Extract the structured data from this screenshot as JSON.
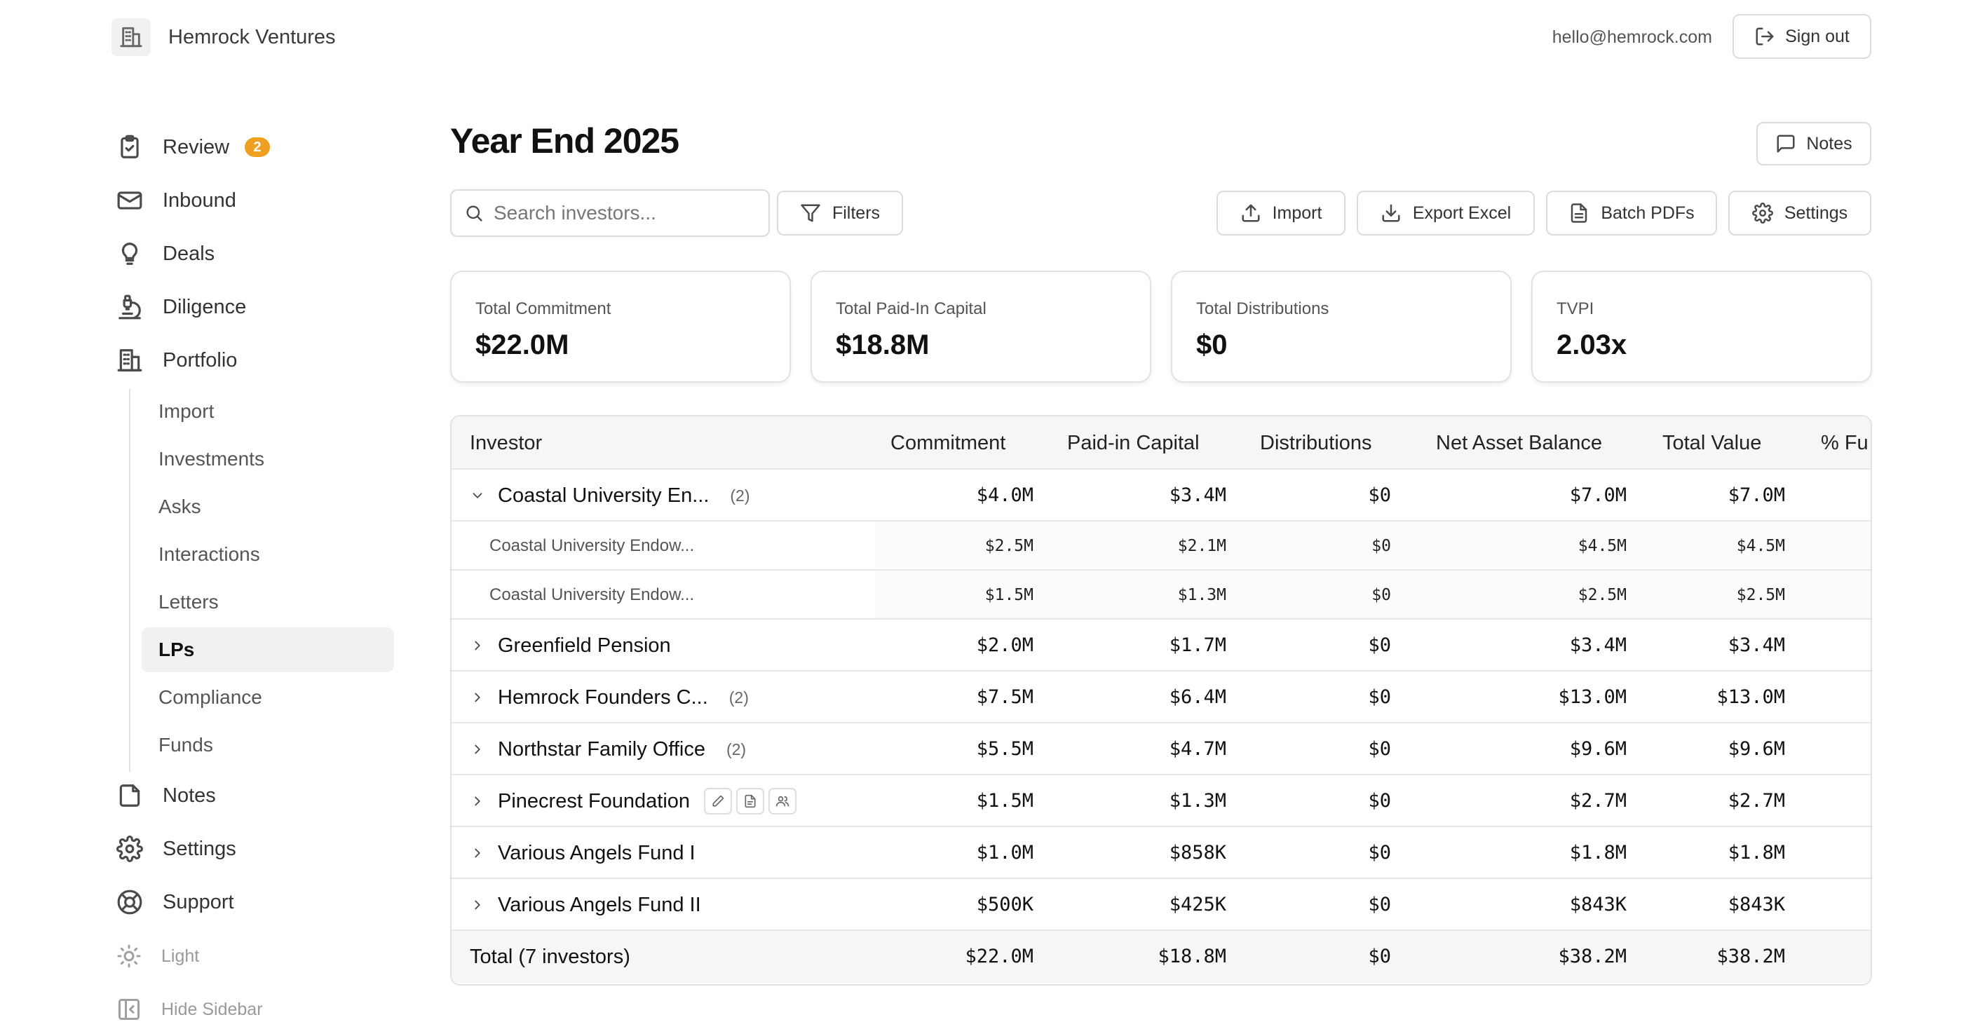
{
  "header": {
    "org_name": "Hemrock Ventures",
    "user_email": "hello@hemrock.com",
    "signout_label": "Sign out"
  },
  "sidebar": {
    "items": [
      {
        "label": "Review",
        "icon": "clipboard-check-icon",
        "badge": "2"
      },
      {
        "label": "Inbound",
        "icon": "mail-icon"
      },
      {
        "label": "Deals",
        "icon": "lightbulb-icon"
      },
      {
        "label": "Diligence",
        "icon": "microscope-icon"
      },
      {
        "label": "Portfolio",
        "icon": "building-icon"
      }
    ],
    "portfolio_sub": [
      "Import",
      "Investments",
      "Asks",
      "Interactions",
      "Letters",
      "LPs",
      "Compliance",
      "Funds"
    ],
    "active_sub": "LPs",
    "items_after": [
      {
        "label": "Notes",
        "icon": "note-icon"
      },
      {
        "label": "Settings",
        "icon": "gear-icon"
      },
      {
        "label": "Support",
        "icon": "lifebuoy-icon"
      }
    ],
    "theme_label": "Light",
    "hide_label": "Hide Sidebar"
  },
  "main": {
    "title": "Year End 2025",
    "notes_label": "Notes",
    "search_placeholder": "Search investors...",
    "filters_label": "Filters",
    "import_label": "Import",
    "export_label": "Export Excel",
    "batch_label": "Batch PDFs",
    "settings_label": "Settings"
  },
  "stats": [
    {
      "label": "Total Commitment",
      "value": "$22.0M"
    },
    {
      "label": "Total Paid-In Capital",
      "value": "$18.8M"
    },
    {
      "label": "Total Distributions",
      "value": "$0"
    },
    {
      "label": "TVPI",
      "value": "2.03x"
    }
  ],
  "table": {
    "columns": [
      "Investor",
      "Commitment",
      "Paid-in Capital",
      "Distributions",
      "Net Asset Balance",
      "Total Value",
      "% Fu"
    ],
    "rows": [
      {
        "name": "Coastal University En...",
        "count": "(2)",
        "expanded": true,
        "values": [
          "$4.0M",
          "$3.4M",
          "$0",
          "$7.0M",
          "$7.0M"
        ]
      },
      {
        "name": "Coastal University Endow...",
        "sub": true,
        "values": [
          "$2.5M",
          "$2.1M",
          "$0",
          "$4.5M",
          "$4.5M"
        ]
      },
      {
        "name": "Coastal University Endow...",
        "sub": true,
        "values": [
          "$1.5M",
          "$1.3M",
          "$0",
          "$2.5M",
          "$2.5M"
        ]
      },
      {
        "name": "Greenfield Pension",
        "values": [
          "$2.0M",
          "$1.7M",
          "$0",
          "$3.4M",
          "$3.4M"
        ]
      },
      {
        "name": "Hemrock Founders C...",
        "count": "(2)",
        "values": [
          "$7.5M",
          "$6.4M",
          "$0",
          "$13.0M",
          "$13.0M"
        ]
      },
      {
        "name": "Northstar Family Office",
        "count": "(2)",
        "values": [
          "$5.5M",
          "$4.7M",
          "$0",
          "$9.6M",
          "$9.6M"
        ]
      },
      {
        "name": "Pinecrest Foundation",
        "actions": true,
        "values": [
          "$1.5M",
          "$1.3M",
          "$0",
          "$2.7M",
          "$2.7M"
        ]
      },
      {
        "name": "Various Angels Fund I",
        "values": [
          "$1.0M",
          "$858K",
          "$0",
          "$1.8M",
          "$1.8M"
        ]
      },
      {
        "name": "Various Angels Fund II",
        "values": [
          "$500K",
          "$425K",
          "$0",
          "$843K",
          "$843K"
        ]
      }
    ],
    "total": {
      "name": "Total (7 investors)",
      "values": [
        "$22.0M",
        "$18.8M",
        "$0",
        "$38.2M",
        "$38.2M"
      ]
    }
  }
}
